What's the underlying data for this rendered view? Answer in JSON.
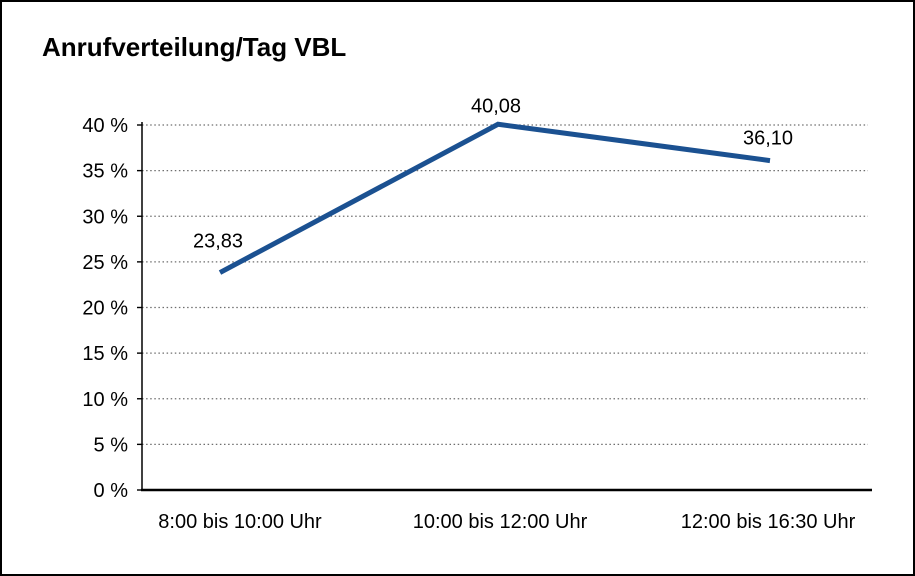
{
  "title": "Anrufverteilung/Tag VBL",
  "chart_data": {
    "type": "line",
    "title": "Anrufverteilung/Tag VBL",
    "categories": [
      "8:00 bis 10:00 Uhr",
      "10:00 bis 12:00 Uhr",
      "12:00 bis 16:30 Uhr"
    ],
    "values": [
      23.83,
      40.08,
      36.1
    ],
    "data_labels": [
      "23,83",
      "40,08",
      "36,10"
    ],
    "ytick_labels": [
      "0 %",
      "5 %",
      "10 %",
      "15 %",
      "20 %",
      "25 %",
      "30 %",
      "35 %",
      "40 %"
    ],
    "ylim": [
      0,
      40
    ],
    "ytick_step": 5,
    "xlabel": "",
    "ylabel": "",
    "grid": "horizontal-dotted",
    "legend": "none",
    "line_color": "#1b5191",
    "axis_color": "#000000",
    "gridline_color": "#6e6e6e",
    "text_color": "#000000"
  }
}
